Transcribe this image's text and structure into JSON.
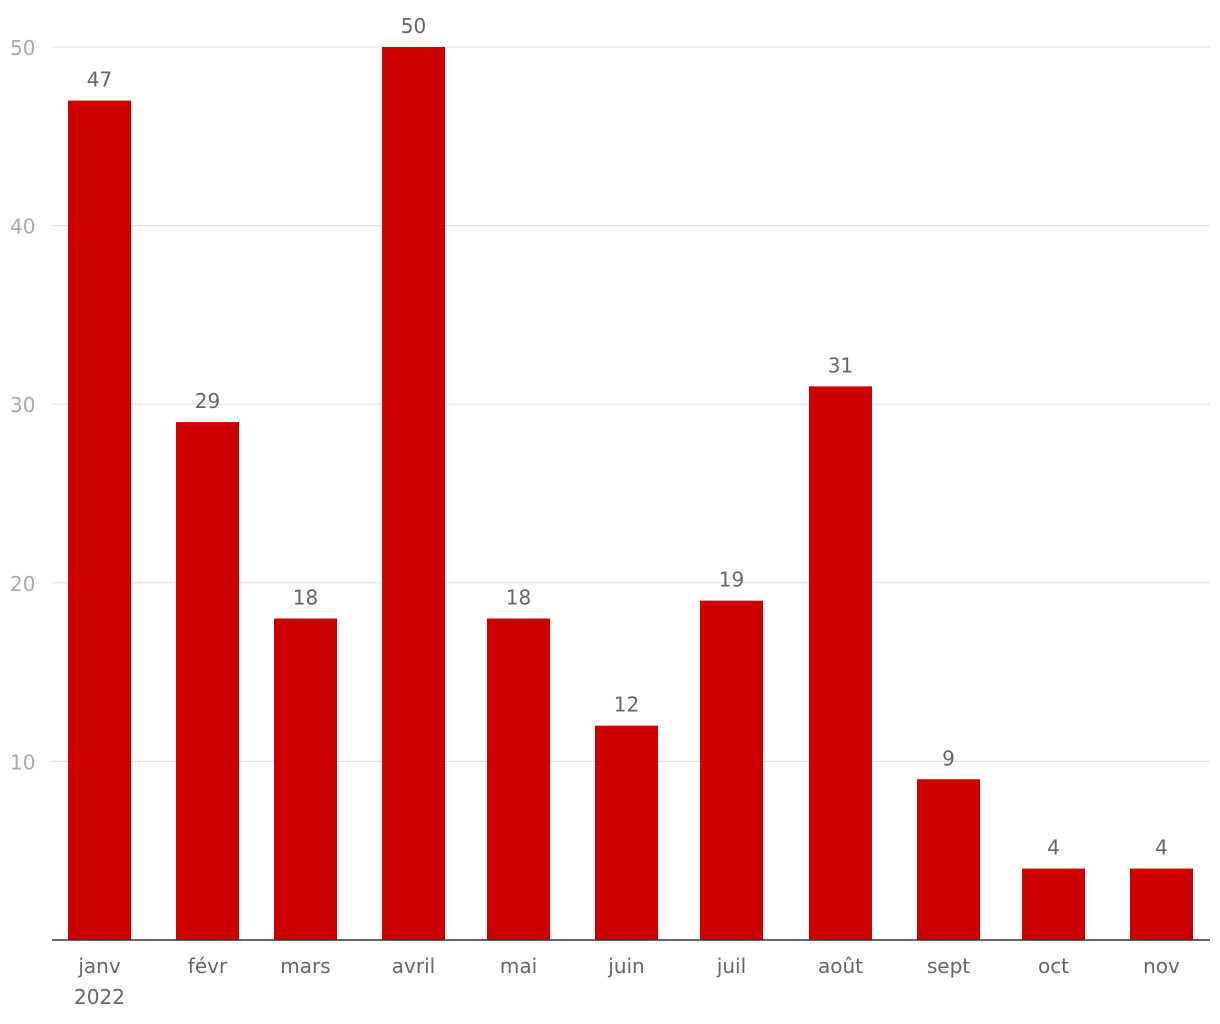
{
  "chart_data": {
    "type": "bar",
    "title": "",
    "xlabel": "",
    "ylabel": "",
    "categories": [
      "janv",
      "févr",
      "mars",
      "avril",
      "mai",
      "juin",
      "juil",
      "août",
      "sept",
      "oct",
      "nov"
    ],
    "year_label": "2022",
    "values": [
      47,
      29,
      18,
      50,
      18,
      12,
      19,
      31,
      9,
      4,
      4
    ],
    "ylim": [
      0,
      50
    ],
    "yticks": [
      10,
      20,
      30,
      40,
      50
    ],
    "grid": true,
    "data_labels": true,
    "colors": {
      "bar": "#cc0000",
      "grid": "#e3e3e3",
      "axis": "#333333",
      "tick_label": "#aaaaaa",
      "label": "#666666"
    }
  }
}
